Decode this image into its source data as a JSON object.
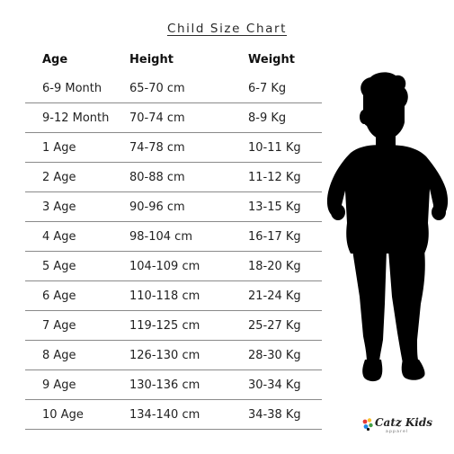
{
  "title": "Child Size Chart",
  "headers": {
    "age": "Age",
    "height": "Height",
    "weight": "Weight"
  },
  "rows": [
    {
      "age": "6-9 Month",
      "height": "65-70 cm",
      "weight": "6-7 Kg"
    },
    {
      "age": "9-12 Month",
      "height": "70-74 cm",
      "weight": "8-9 Kg"
    },
    {
      "age": "1 Age",
      "height": "74-78 cm",
      "weight": "10-11 Kg"
    },
    {
      "age": "2 Age",
      "height": "80-88 cm",
      "weight": "11-12 Kg"
    },
    {
      "age": "3 Age",
      "height": "90-96 cm",
      "weight": "13-15 Kg"
    },
    {
      "age": "4 Age",
      "height": "98-104 cm",
      "weight": "16-17 Kg"
    },
    {
      "age": "5 Age",
      "height": "104-109 cm",
      "weight": "18-20 Kg"
    },
    {
      "age": "6 Age",
      "height": "110-118 cm",
      "weight": "21-24 Kg"
    },
    {
      "age": "7 Age",
      "height": "119-125 cm",
      "weight": "25-27 Kg"
    },
    {
      "age": "8 Age",
      "height": "126-130 cm",
      "weight": "28-30 Kg"
    },
    {
      "age": "9 Age",
      "height": "130-136 cm",
      "weight": "30-34 Kg"
    },
    {
      "age": "10 Age",
      "height": "134-140 cm",
      "weight": "34-38 Kg"
    }
  ],
  "logo": {
    "name": "Catz Kids",
    "subtitle": "apparel"
  },
  "colors": {
    "silhouette": "#000000",
    "rule": "#8a8a8a"
  }
}
